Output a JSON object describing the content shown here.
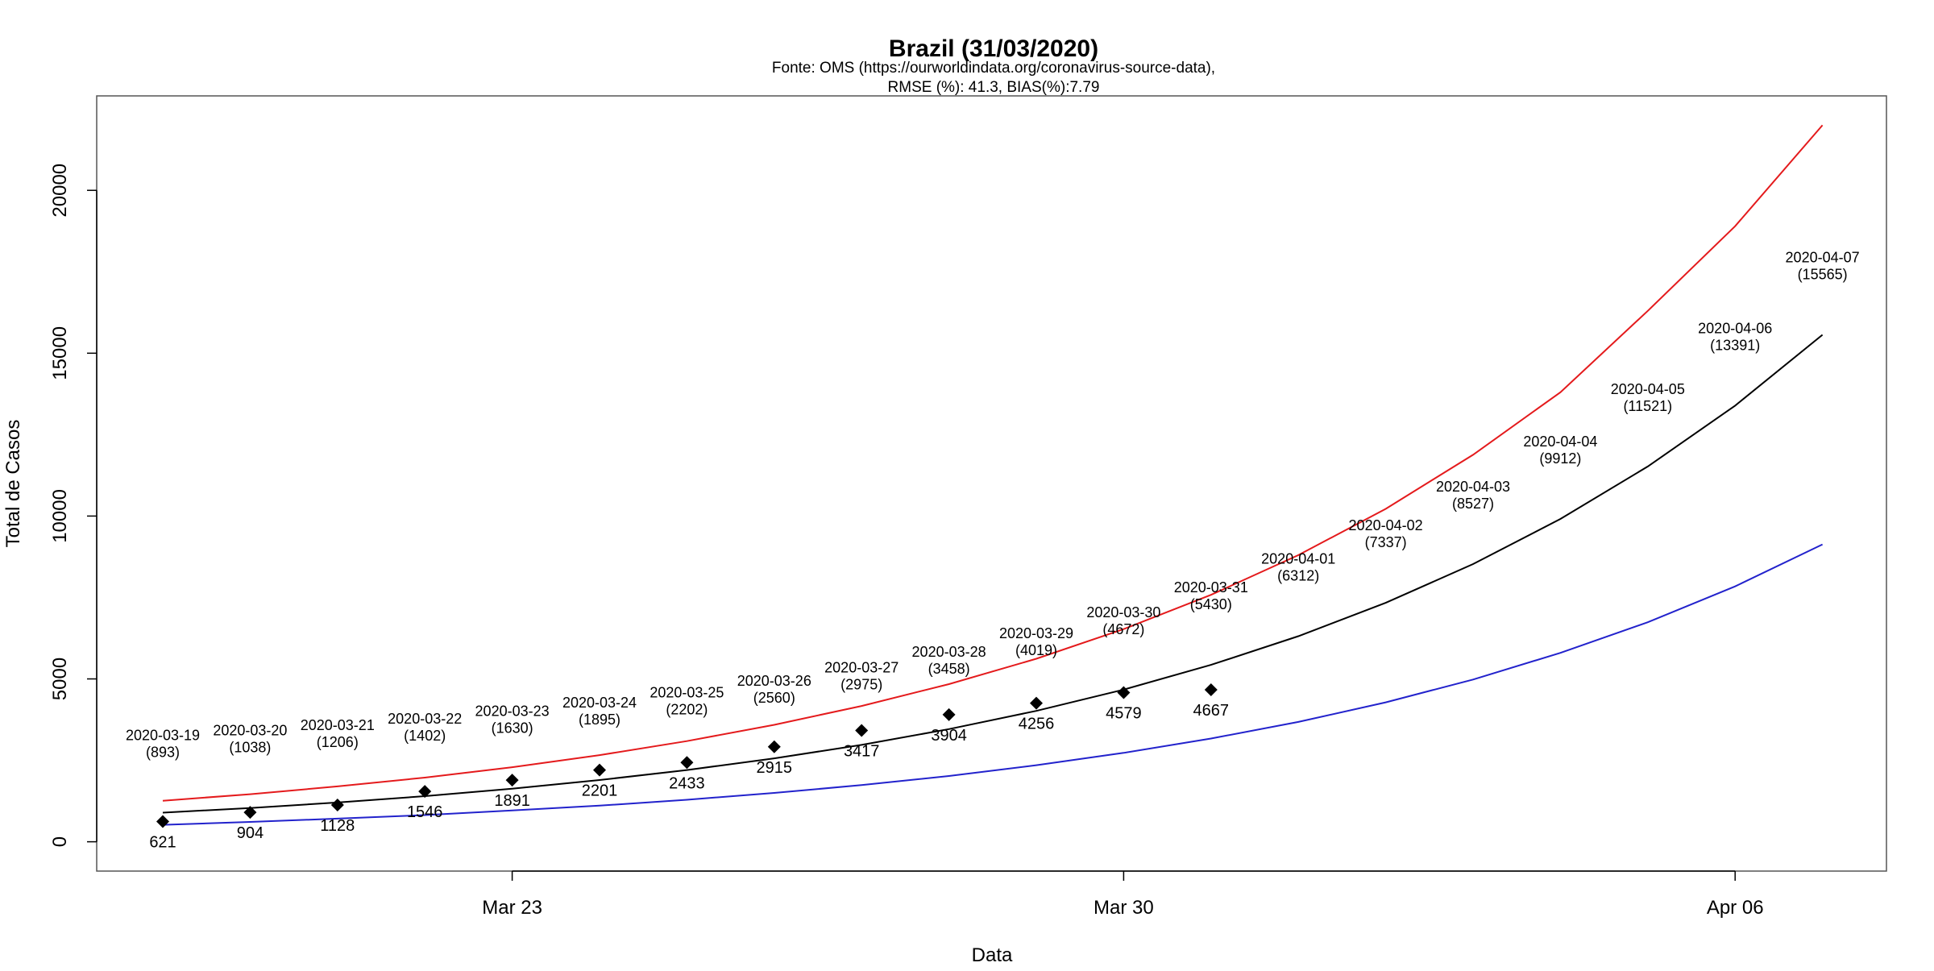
{
  "chart_data": {
    "type": "line",
    "title": "Brazil (31/03/2020)",
    "subtitle_lines": [
      "Fonte: OMS (https://ourworldindata.org/coronavirus-source-data),",
      "RMSE (%): 41.3, BIAS(%):7.79"
    ],
    "xlabel": "Data",
    "ylabel": "Total de Casos",
    "x_ticks": [
      "Mar 23",
      "Mar 30",
      "Apr 06"
    ],
    "y_ticks": [
      0,
      5000,
      10000,
      15000,
      20000
    ],
    "ylim": [
      -900,
      22900
    ],
    "grid": false,
    "x": [
      "2020-03-19",
      "2020-03-20",
      "2020-03-21",
      "2020-03-22",
      "2020-03-23",
      "2020-03-24",
      "2020-03-25",
      "2020-03-26",
      "2020-03-27",
      "2020-03-28",
      "2020-03-29",
      "2020-03-30",
      "2020-03-31",
      "2020-04-01",
      "2020-04-02",
      "2020-04-03",
      "2020-04-04",
      "2020-04-05",
      "2020-04-06",
      "2020-04-07"
    ],
    "series": [
      {
        "role": "forecast",
        "color": "#000000",
        "values": [
          893,
          1038,
          1206,
          1402,
          1630,
          1895,
          2202,
          2560,
          2975,
          3458,
          4019,
          4672,
          5430,
          6312,
          7337,
          8527,
          9912,
          11521,
          13391,
          15565
        ],
        "labels": [
          "2020-03-19\n(893)",
          "2020-03-20\n(1038)",
          "2020-03-21\n(1206)",
          "2020-03-22\n(1402)",
          "2020-03-23\n(1630)",
          "2020-03-24\n(1895)",
          "2020-03-25\n(2202)",
          "2020-03-26\n(2560)",
          "2020-03-27\n(2975)",
          "2020-03-28\n(3458)",
          "2020-03-29\n(4019)",
          "2020-03-30\n(4672)",
          "2020-03-31\n(5430)",
          "2020-04-01\n(6312)",
          "2020-04-02\n(7337)",
          "2020-04-03\n(8527)",
          "2020-04-04\n(9912)",
          "2020-04-05\n(11521)",
          "2020-04-06\n(13391)",
          "2020-04-07\n(15565)"
        ]
      },
      {
        "role": "upper bound",
        "color": "#e41a1c",
        "values": [
          1260,
          1460,
          1700,
          1970,
          2290,
          2660,
          3090,
          3590,
          4170,
          4840,
          5620,
          6530,
          7580,
          8800,
          10220,
          11880,
          13800,
          16300,
          18900,
          22000
        ]
      },
      {
        "role": "lower bound",
        "color": "#2222cc",
        "values": [
          520,
          610,
          710,
          820,
          960,
          1110,
          1290,
          1500,
          1740,
          2020,
          2350,
          2730,
          3170,
          3680,
          4280,
          4980,
          5800,
          6740,
          7840,
          9130
        ]
      },
      {
        "role": "observed",
        "color": "#000000",
        "marker": "diamond",
        "x": [
          "2020-03-19",
          "2020-03-20",
          "2020-03-21",
          "2020-03-22",
          "2020-03-23",
          "2020-03-24",
          "2020-03-25",
          "2020-03-26",
          "2020-03-27",
          "2020-03-28",
          "2020-03-29",
          "2020-03-30",
          "2020-03-31"
        ],
        "values": [
          621,
          904,
          1128,
          1546,
          1891,
          2201,
          2433,
          2915,
          3417,
          3904,
          4256,
          4579,
          4667
        ]
      }
    ]
  }
}
